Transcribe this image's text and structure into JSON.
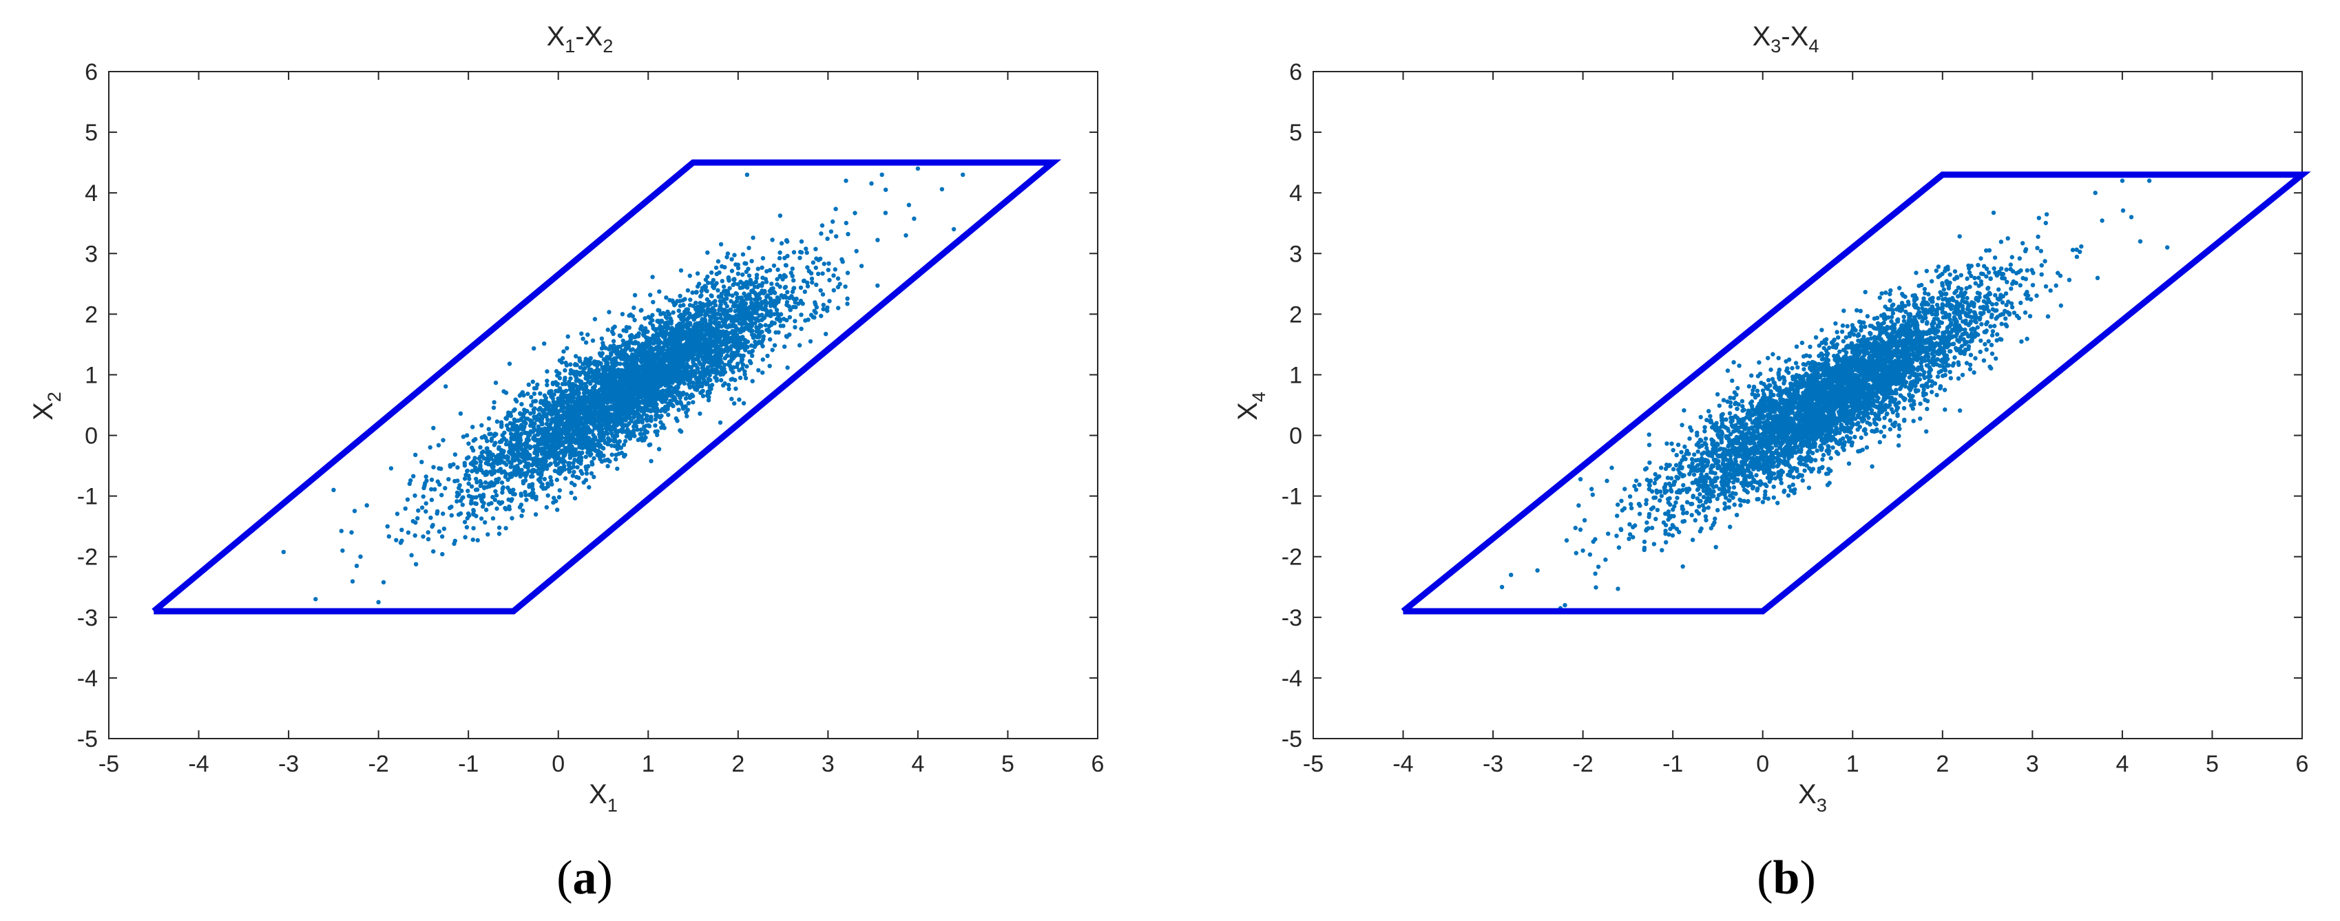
{
  "figure": {
    "panels": [
      {
        "id": "a",
        "caption_open": "(",
        "caption_letter": "a",
        "caption_close": ")"
      },
      {
        "id": "b",
        "caption_open": "(",
        "caption_letter": "b",
        "caption_close": ")"
      }
    ]
  },
  "chart_data": [
    {
      "type": "scatter",
      "title": {
        "base1": "X",
        "sub1": "1",
        "sep": "-",
        "base2": "X",
        "sub2": "2"
      },
      "xlabel": {
        "base": "X",
        "sub": "1"
      },
      "ylabel": {
        "base": "X",
        "sub": "2"
      },
      "xlim": [
        -5,
        6
      ],
      "ylim": [
        -5,
        6
      ],
      "xticks": [
        -5,
        -4,
        -3,
        -2,
        -1,
        0,
        1,
        2,
        3,
        4,
        5,
        6
      ],
      "yticks": [
        -5,
        -4,
        -3,
        -2,
        -1,
        0,
        1,
        2,
        3,
        4,
        5,
        6
      ],
      "grid": false,
      "point_color": "#0072BD",
      "boundary_color": "#0000E6",
      "boundary_polygon": [
        [
          -4.5,
          -2.9
        ],
        [
          -0.5,
          -2.9
        ],
        [
          5.5,
          4.5
        ],
        [
          1.5,
          4.5
        ],
        [
          -4.5,
          -2.9
        ]
      ],
      "scatter": {
        "n": 5000,
        "mean": [
          0.8,
          0.8
        ],
        "std": [
          0.9,
          0.9
        ],
        "corr": 0.86,
        "seed": 17
      },
      "outlier_points": [
        [
          -2.7,
          -2.7
        ],
        [
          -2.0,
          -2.75
        ],
        [
          -2.4,
          -1.9
        ],
        [
          -2.3,
          -1.6
        ],
        [
          -2.5,
          -0.9
        ],
        [
          4.0,
          4.4
        ],
        [
          4.4,
          3.4
        ],
        [
          3.6,
          4.3
        ],
        [
          4.5,
          4.3
        ],
        [
          3.2,
          4.2
        ],
        [
          3.9,
          3.8
        ],
        [
          2.1,
          4.3
        ],
        [
          -2.2,
          -2.0
        ],
        [
          -1.9,
          -1.5
        ]
      ]
    },
    {
      "type": "scatter",
      "title": {
        "base1": "X",
        "sub1": "3",
        "sep": "-",
        "base2": "X",
        "sub2": "4"
      },
      "xlabel": {
        "base": "X",
        "sub": "3"
      },
      "ylabel": {
        "base": "X",
        "sub": "4"
      },
      "xlim": [
        -5,
        6
      ],
      "ylim": [
        -5,
        6
      ],
      "xticks": [
        -5,
        -4,
        -3,
        -2,
        -1,
        0,
        1,
        2,
        3,
        4,
        5,
        6
      ],
      "yticks": [
        -5,
        -4,
        -3,
        -2,
        -1,
        0,
        1,
        2,
        3,
        4,
        5,
        6
      ],
      "grid": false,
      "point_color": "#0072BD",
      "boundary_color": "#0000E6",
      "boundary_polygon": [
        [
          -4.0,
          -2.9
        ],
        [
          0.0,
          -2.9
        ],
        [
          6.0,
          4.3
        ],
        [
          2.0,
          4.3
        ],
        [
          -4.0,
          -2.9
        ]
      ],
      "scatter": {
        "n": 5000,
        "mean": [
          0.8,
          0.65
        ],
        "std": [
          0.9,
          0.9
        ],
        "corr": 0.87,
        "seed": 91
      },
      "outlier_points": [
        [
          -2.9,
          -2.5
        ],
        [
          -2.8,
          -2.3
        ],
        [
          -2.2,
          -2.8
        ],
        [
          -2.25,
          -2.85
        ],
        [
          -2.0,
          -1.9
        ],
        [
          -1.6,
          -1.85
        ],
        [
          4.7,
          4.3
        ],
        [
          4.3,
          4.2
        ],
        [
          4.5,
          3.1
        ],
        [
          4.1,
          3.6
        ],
        [
          3.7,
          4.0
        ],
        [
          4.0,
          4.2
        ],
        [
          4.2,
          3.2
        ]
      ]
    }
  ]
}
